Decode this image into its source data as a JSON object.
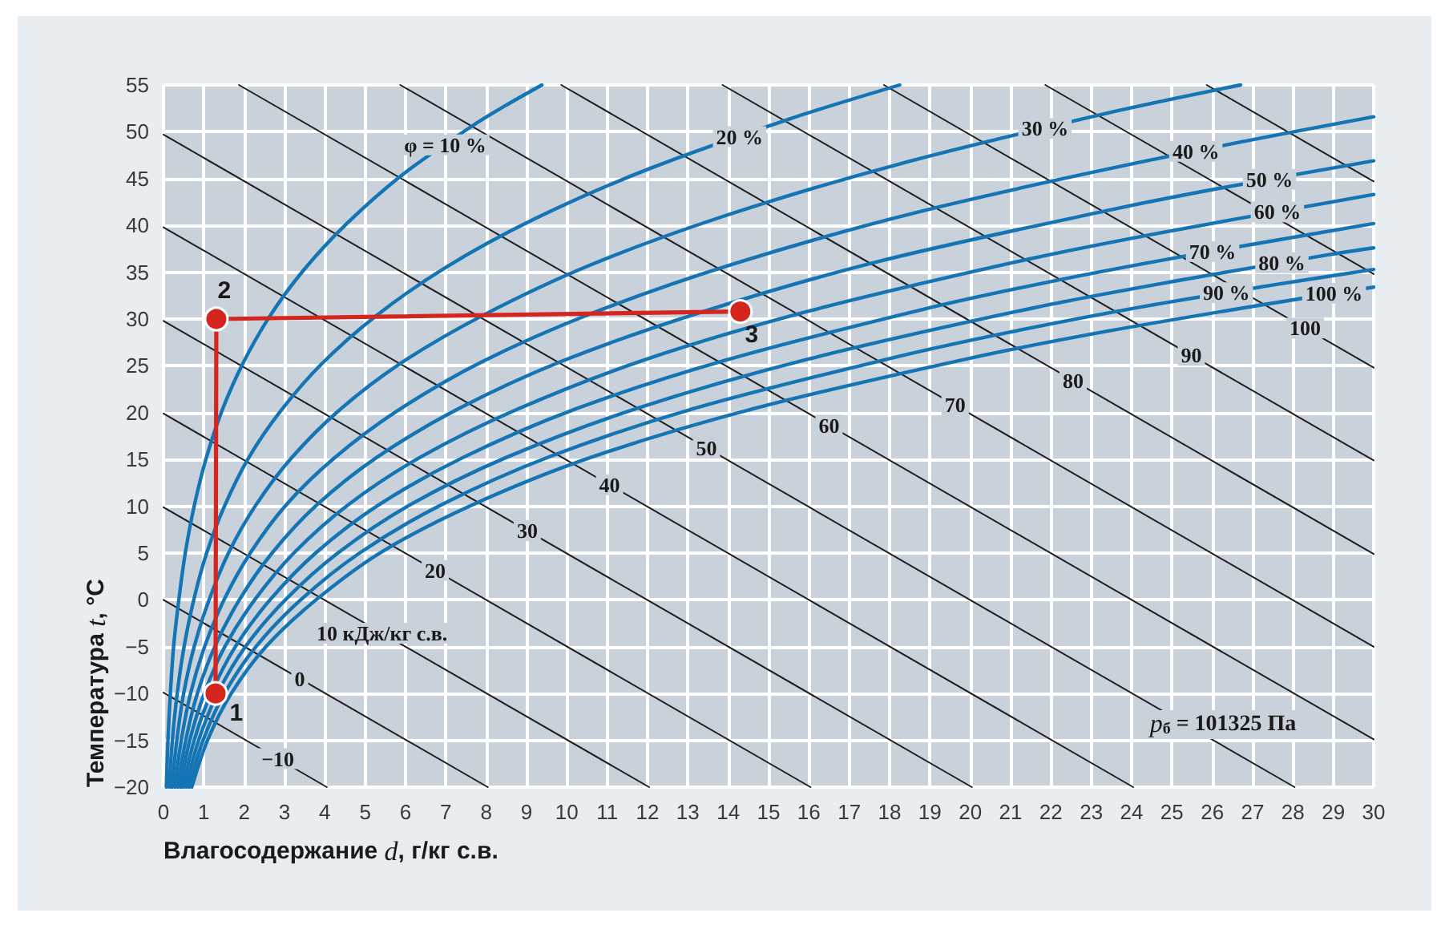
{
  "chart_data": {
    "type": "line",
    "xlabel": "Влагосодержание d, г/кг с.в.",
    "ylabel": "Температура t, °C",
    "xlim": [
      0,
      30
    ],
    "xticks": [
      0,
      1,
      2,
      3,
      4,
      5,
      6,
      7,
      8,
      9,
      10,
      11,
      12,
      13,
      14,
      15,
      16,
      17,
      18,
      19,
      20,
      21,
      22,
      23,
      24,
      25,
      26,
      27,
      28,
      29,
      30
    ],
    "ylim": [
      -20,
      55
    ],
    "yticks": [
      -20,
      -15,
      -10,
      -5,
      0,
      5,
      10,
      15,
      20,
      25,
      30,
      35,
      40,
      45,
      50,
      55
    ],
    "grid": true,
    "legend": false,
    "marker": "none",
    "line_style": "solid",
    "annotations": [
      "p$_{б}$ = 101325 Па",
      {
        "text": "1",
        "x": 1.29,
        "y": -10
      },
      {
        "text": "2",
        "x": 1.31,
        "y": 30
      },
      {
        "text": "3",
        "x": 14.3,
        "y": 30.8
      }
    ],
    "series": [
      {
        "name": "−10",
        "color": "#1e1e1e",
        "x": [
          0,
          4.05
        ],
        "values": [
          -9.9,
          -20
        ]
      },
      {
        "name": "0",
        "color": "#1e1e1e",
        "x": [
          0,
          8.04
        ],
        "values": [
          0,
          -20
        ]
      },
      {
        "name": "10 кДж/кг с.в.",
        "color": "#1e1e1e",
        "x": [
          0,
          12.04
        ],
        "values": [
          9.9,
          -20
        ]
      },
      {
        "name": "20",
        "color": "#1e1e1e",
        "x": [
          0,
          16.04
        ],
        "values": [
          19.9,
          -20
        ]
      },
      {
        "name": "30",
        "color": "#1e1e1e",
        "x": [
          0,
          20.04
        ],
        "values": [
          29.8,
          -20
        ]
      },
      {
        "name": "40",
        "color": "#1e1e1e",
        "x": [
          0,
          24.04
        ],
        "values": [
          39.8,
          -20
        ]
      },
      {
        "name": "50",
        "color": "#1e1e1e",
        "x": [
          0,
          28.04
        ],
        "values": [
          49.7,
          -20
        ]
      },
      {
        "name": "60",
        "color": "#1e1e1e",
        "x": [
          1.87,
          30
        ],
        "values": [
          55,
          -14.9
        ]
      },
      {
        "name": "70",
        "color": "#1e1e1e",
        "x": [
          5.87,
          30
        ],
        "values": [
          55,
          -5.0
        ]
      },
      {
        "name": "80",
        "color": "#1e1e1e",
        "x": [
          9.86,
          30
        ],
        "values": [
          55,
          4.9
        ]
      },
      {
        "name": "90",
        "color": "#1e1e1e",
        "x": [
          13.86,
          30
        ],
        "values": [
          55,
          14.9
        ]
      },
      {
        "name": "100",
        "color": "#1e1e1e",
        "x": [
          17.86,
          30
        ],
        "values": [
          55,
          24.8
        ]
      },
      {
        "color": "#1e1e1e",
        "x": [
          21.86,
          30
        ],
        "values": [
          55,
          34.8
        ]
      },
      {
        "color": "#1e1e1e",
        "x": [
          25.86,
          30
        ],
        "values": [
          55,
          44.7
        ]
      },
      {
        "name": "φ = 10 %",
        "color": "#1474b4",
        "x": [
          0.07,
          0.11,
          0.17,
          0.25,
          0.38,
          0.54,
          0.76,
          1.05,
          1.44,
          1.95,
          2.62,
          3.47,
          4.57,
          5.95,
          7.68,
          8.48,
          9.38
        ],
        "values": [
          -20,
          -15,
          -10,
          -5,
          0,
          5.0,
          10.0,
          15.0,
          20.1,
          25.1,
          30.2,
          35.2,
          40.3,
          45.5,
          50.7,
          52.8,
          55
        ]
      },
      {
        "name": "20 %",
        "color": "#1474b4",
        "x": [
          0.14,
          0.22,
          0.34,
          0.51,
          0.75,
          1.07,
          1.51,
          2.1,
          2.89,
          3.92,
          5.26,
          6.99,
          9.2,
          12.01,
          15.54,
          18.25
        ],
        "values": [
          -20,
          -15,
          -10,
          -5,
          0,
          5.0,
          10.0,
          15.1,
          20.1,
          25.2,
          30.3,
          35.5,
          40.7,
          46.0,
          51.4,
          55
        ]
      },
      {
        "name": "30 %",
        "color": "#1474b4",
        "x": [
          0.21,
          0.33,
          0.5,
          0.76,
          1.13,
          1.61,
          2.27,
          3.16,
          4.34,
          5.89,
          7.92,
          10.54,
          13.9,
          18.19,
          23.61,
          26.7
        ],
        "values": [
          -20,
          -15,
          -10,
          -5,
          0,
          5.0,
          10.0,
          15.1,
          20.2,
          25.3,
          30.4,
          35.7,
          41.0,
          46.5,
          52.2,
          55
        ]
      },
      {
        "name": "40 %",
        "color": "#1474b4",
        "x": [
          0.28,
          0.44,
          0.67,
          1.02,
          1.5,
          2.15,
          3.03,
          4.22,
          5.8,
          7.88,
          10.61,
          14.14,
          18.68,
          24.49,
          30
        ],
        "values": [
          -20,
          -15,
          -10,
          -5,
          0,
          5.0,
          10.1,
          15.1,
          20.2,
          25.4,
          30.6,
          35.9,
          41.4,
          47.0,
          51.6
        ]
      },
      {
        "name": "50 %",
        "color": "#1474b4",
        "x": [
          0.35,
          0.55,
          0.84,
          1.27,
          1.88,
          2.69,
          3.79,
          5.28,
          7.26,
          9.88,
          13.31,
          17.77,
          23.52,
          26.22,
          30
        ],
        "values": [
          -20,
          -15,
          -10,
          -5,
          0,
          5.0,
          10.1,
          15.2,
          20.3,
          25.5,
          30.7,
          36.2,
          41.7,
          44.0,
          46.9
        ]
      },
      {
        "name": "60 %",
        "color": "#1474b4",
        "x": [
          0.42,
          0.65,
          1.01,
          1.52,
          2.26,
          3.23,
          4.56,
          6.35,
          8.74,
          11.9,
          16.05,
          21.45,
          24.7,
          28.44,
          30
        ],
        "values": [
          -20,
          -15,
          -10,
          -5,
          0,
          5.0,
          10.1,
          15.2,
          20.3,
          25.6,
          30.9,
          36.4,
          39.2,
          42.1,
          43.3
        ]
      },
      {
        "name": "70 %",
        "color": "#1474b4",
        "x": [
          0.49,
          0.76,
          1.18,
          1.78,
          2.64,
          3.77,
          5.32,
          7.42,
          10.22,
          13.93,
          18.8,
          21.77,
          25.17,
          30
        ],
        "values": [
          -20,
          -15,
          -10,
          -5,
          0,
          5.0,
          10.1,
          15.2,
          20.4,
          25.6,
          31.0,
          33.8,
          36.6,
          40.2
        ]
      },
      {
        "name": "80 %",
        "color": "#1474b4",
        "x": [
          0.56,
          0.87,
          1.34,
          2.03,
          3.02,
          4.32,
          6.09,
          8.49,
          11.7,
          15.97,
          21.58,
          25.01,
          28.93,
          30
        ],
        "values": [
          -20,
          -15,
          -10,
          -5,
          0,
          5.0,
          10.1,
          15.2,
          20.4,
          25.7,
          31.2,
          34.0,
          36.9,
          37.6
        ]
      },
      {
        "name": "90 %",
        "color": "#1474b4",
        "x": [
          0.63,
          0.98,
          1.51,
          2.29,
          3.4,
          4.86,
          6.86,
          9.57,
          13.2,
          18.02,
          20.98,
          24.38,
          27.46,
          30
        ],
        "values": [
          -20,
          -15,
          -10,
          -5,
          0,
          5.0,
          10.1,
          15.3,
          20.5,
          25.8,
          28.6,
          31.4,
          33.6,
          35.3
        ]
      },
      {
        "name": "100 %",
        "color": "#1474b4",
        "x": [
          0.7,
          1.09,
          1.68,
          2.54,
          3.78,
          5.4,
          7.63,
          10.65,
          14.7,
          20.09,
          23.4,
          27.21,
          30
        ],
        "values": [
          -20,
          -15,
          -10,
          -5,
          0,
          5.1,
          10.1,
          15.3,
          20.5,
          25.9,
          28.7,
          31.5,
          33.4
        ]
      },
      {
        "color": "#d4261e",
        "marker": "circle",
        "x": [
          1.29,
          1.31,
          14.3
        ],
        "values": [
          -10,
          30,
          30.8
        ]
      }
    ]
  }
}
